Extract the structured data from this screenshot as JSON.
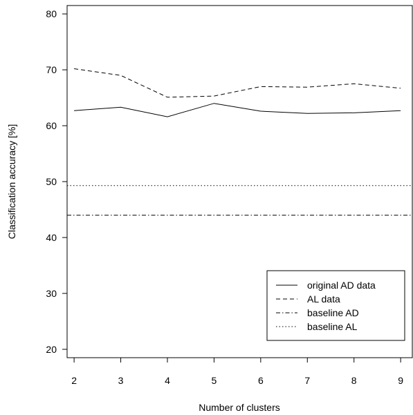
{
  "chart_data": {
    "type": "line",
    "xlabel": "Number of clusters",
    "ylabel": "Classification accuracy [%]",
    "x": [
      2,
      3,
      4,
      5,
      6,
      7,
      8,
      9
    ],
    "xticks": [
      "2",
      "3",
      "4",
      "5",
      "6",
      "7",
      "8",
      "9"
    ],
    "yticks": [
      "20",
      "30",
      "40",
      "50",
      "60",
      "70",
      "80"
    ],
    "xlim": [
      1.85,
      9.25
    ],
    "ylim": [
      18.5,
      81.5
    ],
    "grid": false,
    "legend_position": "bottom-right",
    "series": [
      {
        "name": "original AD data",
        "line_style": "solid",
        "values": [
          62.7,
          63.3,
          61.6,
          64.0,
          62.6,
          62.2,
          62.3,
          62.7
        ]
      },
      {
        "name": "AL data",
        "line_style": "dashed",
        "values": [
          70.2,
          69.0,
          65.1,
          65.3,
          67.0,
          66.9,
          67.5,
          66.7
        ]
      },
      {
        "name": "baseline AD",
        "line_style": "dashdot",
        "values": [
          44.0,
          44.0,
          44.0,
          44.0,
          44.0,
          44.0,
          44.0,
          44.0
        ],
        "full_width": true
      },
      {
        "name": "baseline AL",
        "line_style": "dotted",
        "values": [
          49.3,
          49.3,
          49.3,
          49.3,
          49.3,
          49.3,
          49.3,
          49.3
        ],
        "full_width": true
      }
    ]
  }
}
